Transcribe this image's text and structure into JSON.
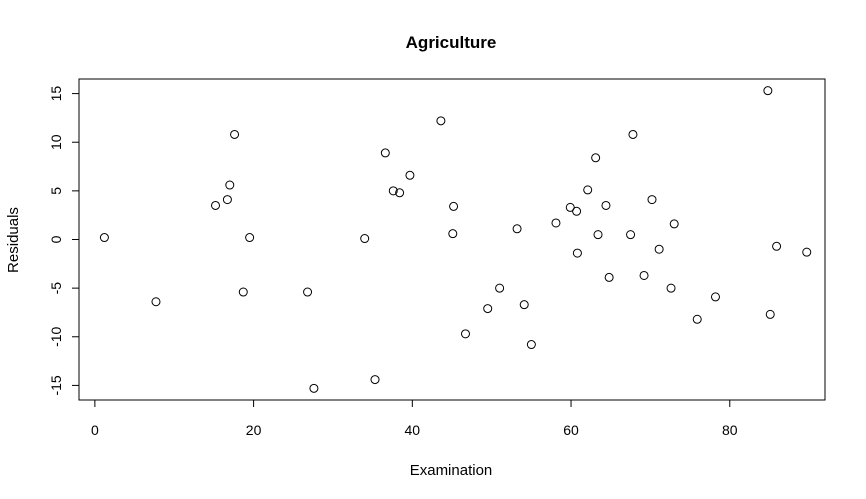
{
  "chart_data": {
    "type": "scatter",
    "title": "Agriculture",
    "xlabel": "Examination",
    "ylabel": "Residuals",
    "xlim": [
      -2,
      92
    ],
    "ylim": [
      -16.5,
      16.5
    ],
    "xticks": [
      0,
      20,
      40,
      60,
      80
    ],
    "yticks": [
      -15,
      -10,
      -5,
      0,
      5,
      10,
      15
    ],
    "grid": false,
    "marker": "open-circle",
    "points": [
      {
        "x": 1.2,
        "y": 0.2
      },
      {
        "x": 7.7,
        "y": -6.4
      },
      {
        "x": 15.2,
        "y": 3.5
      },
      {
        "x": 16.7,
        "y": 4.1
      },
      {
        "x": 17.0,
        "y": 5.6
      },
      {
        "x": 17.6,
        "y": 10.8
      },
      {
        "x": 18.7,
        "y": -5.4
      },
      {
        "x": 19.5,
        "y": 0.2
      },
      {
        "x": 26.8,
        "y": -5.4
      },
      {
        "x": 27.6,
        "y": -15.3
      },
      {
        "x": 34.0,
        "y": 0.1
      },
      {
        "x": 35.3,
        "y": -14.4
      },
      {
        "x": 36.6,
        "y": 8.9
      },
      {
        "x": 37.6,
        "y": 5.0
      },
      {
        "x": 38.4,
        "y": 4.8
      },
      {
        "x": 39.7,
        "y": 6.6
      },
      {
        "x": 43.6,
        "y": 12.2
      },
      {
        "x": 45.1,
        "y": 0.6
      },
      {
        "x": 45.2,
        "y": 3.4
      },
      {
        "x": 46.7,
        "y": -9.7
      },
      {
        "x": 49.5,
        "y": -7.1
      },
      {
        "x": 51.0,
        "y": -5.0
      },
      {
        "x": 53.2,
        "y": 1.1
      },
      {
        "x": 54.1,
        "y": -6.7
      },
      {
        "x": 55.0,
        "y": -10.8
      },
      {
        "x": 58.1,
        "y": 1.7
      },
      {
        "x": 59.9,
        "y": 3.3
      },
      {
        "x": 60.7,
        "y": 2.9
      },
      {
        "x": 60.8,
        "y": -1.4
      },
      {
        "x": 62.1,
        "y": 5.1
      },
      {
        "x": 63.1,
        "y": 8.4
      },
      {
        "x": 63.4,
        "y": 0.5
      },
      {
        "x": 64.4,
        "y": 3.5
      },
      {
        "x": 64.8,
        "y": -3.9
      },
      {
        "x": 67.5,
        "y": 0.5
      },
      {
        "x": 67.8,
        "y": 10.8
      },
      {
        "x": 69.2,
        "y": -3.7
      },
      {
        "x": 70.2,
        "y": 4.1
      },
      {
        "x": 71.1,
        "y": -1.0
      },
      {
        "x": 72.6,
        "y": -5.0
      },
      {
        "x": 73.0,
        "y": 1.6
      },
      {
        "x": 75.9,
        "y": -8.2
      },
      {
        "x": 78.2,
        "y": -5.9
      },
      {
        "x": 84.8,
        "y": 15.3
      },
      {
        "x": 85.1,
        "y": -7.7
      },
      {
        "x": 85.9,
        "y": -0.7
      },
      {
        "x": 89.7,
        "y": -1.3
      }
    ]
  }
}
